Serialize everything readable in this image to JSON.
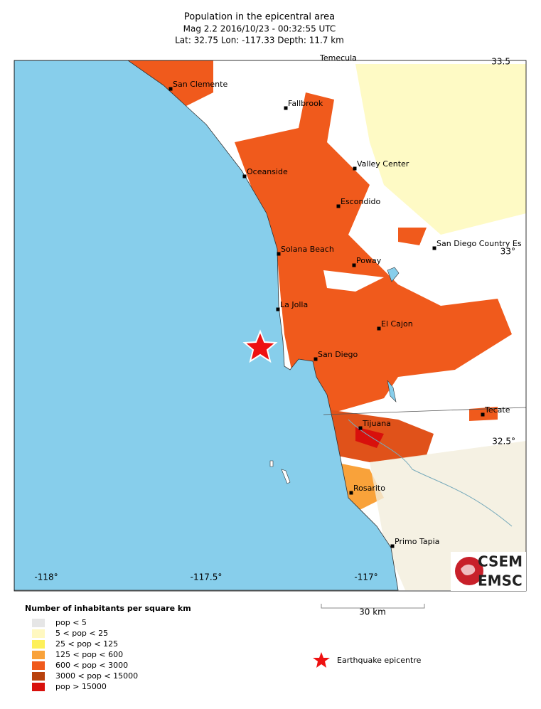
{
  "header": {
    "title": "Population in the epicentral area",
    "line2": "Mag 2.2  2016/10/23 - 00:32:55 UTC",
    "line3": "Lat: 32.75    Lon: -117.33    Depth:  11.7 km"
  },
  "map": {
    "cities": [
      "Temecula",
      "San Clemente",
      "Fallbrook",
      "Oceanside",
      "Valley Center",
      "Escondido",
      "San Diego Country Es",
      "Solana Beach",
      "Poway",
      "La Jolla",
      "El Cajon",
      "San Diego",
      "Tecate",
      "Tijuana",
      "Rosarito",
      "Primo Tapia"
    ],
    "lon_labels": [
      "-118°",
      "-117.5°",
      "-117°"
    ],
    "lat_labels": [
      "33.5",
      "33°",
      "32.5°"
    ],
    "scale": "30 km",
    "logo": [
      "CSEM",
      "EMSC"
    ]
  },
  "legend": {
    "title": "Number of inhabitants per square km",
    "items": [
      {
        "label": "pop < 5",
        "color": "#e6e6e6"
      },
      {
        "label": "5 < pop < 25",
        "color": "#fff8c0"
      },
      {
        "label": "25 < pop < 125",
        "color": "#fdf05a"
      },
      {
        "label": "125 < pop < 600",
        "color": "#f9a23a"
      },
      {
        "label": "600 < pop < 3000",
        "color": "#f05a1c"
      },
      {
        "label": "3000 < pop < 15000",
        "color": "#b8420e"
      },
      {
        "label": "pop > 15000",
        "color": "#d8100c"
      }
    ],
    "epicentre": "Earthquake epicentre"
  }
}
